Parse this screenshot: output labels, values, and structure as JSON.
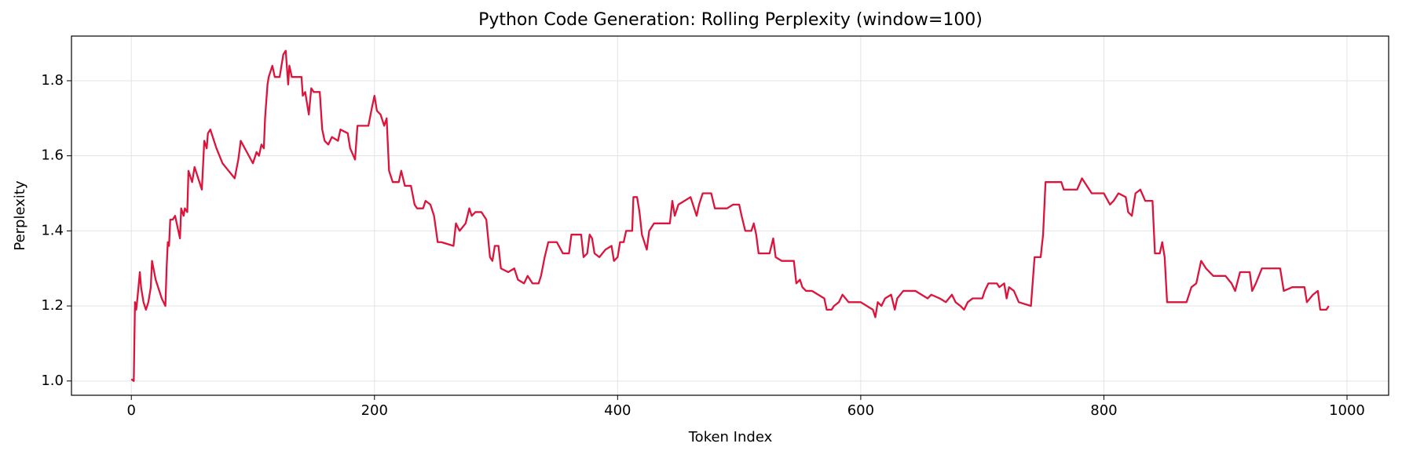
{
  "chart_data": {
    "type": "line",
    "title": "Python Code Generation: Rolling Perplexity (window=100)",
    "xlabel": "Token Index",
    "ylabel": "Perplexity",
    "color": "#dc143c",
    "grid": true,
    "xlim": [
      -49.25,
      1034.25
    ],
    "ylim": [
      0.962,
      1.919
    ],
    "xticks": [
      0,
      200,
      400,
      600,
      800,
      1000
    ],
    "yticks": [
      {
        "value": 1,
        "label": "1.0"
      },
      1.2,
      1.4,
      1.6,
      1.8
    ],
    "x": [
      0,
      2,
      3,
      4,
      5,
      7,
      8,
      10,
      12,
      14,
      16,
      17,
      20,
      25,
      28,
      29,
      30,
      31,
      32,
      34,
      36,
      38,
      40,
      41,
      43,
      44,
      46,
      47,
      50,
      52,
      55,
      58,
      60,
      62,
      63,
      65,
      70,
      75,
      80,
      85,
      88,
      90,
      95,
      100,
      103,
      105,
      107,
      109,
      110,
      112,
      113,
      116,
      118,
      122,
      125,
      127,
      129,
      130,
      132,
      140,
      141,
      143,
      146,
      148,
      150,
      155,
      157,
      159,
      162,
      165,
      170,
      172,
      178,
      180,
      184,
      186,
      190,
      195,
      198,
      200,
      202,
      205,
      208,
      210,
      212,
      215,
      220,
      222,
      225,
      230,
      233,
      235,
      240,
      242,
      246,
      249,
      252,
      255,
      265,
      267,
      270,
      275,
      278,
      280,
      283,
      288,
      292,
      295,
      297,
      299,
      302,
      304,
      310,
      315,
      318,
      323,
      326,
      330,
      335,
      337,
      340,
      343,
      350,
      355,
      360,
      362,
      370,
      372,
      375,
      377,
      379,
      381,
      385,
      390,
      395,
      397,
      400,
      402,
      405,
      407,
      412,
      413,
      416,
      418,
      420,
      424,
      426,
      430,
      443,
      445,
      447,
      450,
      455,
      460,
      463,
      465,
      467,
      470,
      477,
      480,
      490,
      495,
      500,
      502,
      505,
      510,
      512,
      514,
      516,
      525,
      528,
      530,
      535,
      545,
      547,
      550,
      552,
      555,
      560,
      565,
      570,
      572,
      576,
      578,
      582,
      585,
      590,
      600,
      605,
      610,
      612,
      614,
      617,
      620,
      625,
      628,
      630,
      635,
      645,
      650,
      655,
      658,
      665,
      670,
      675,
      678,
      682,
      685,
      688,
      692,
      700,
      702,
      705,
      712,
      714,
      718,
      720,
      722,
      726,
      730,
      740,
      743,
      748,
      750,
      752,
      765,
      767,
      778,
      782,
      786,
      790,
      800,
      805,
      808,
      812,
      818,
      820,
      823,
      826,
      830,
      834,
      840,
      842,
      846,
      848,
      850,
      852,
      856,
      868,
      872,
      876,
      880,
      884,
      890,
      900,
      905,
      908,
      912,
      920,
      922,
      925,
      930,
      945,
      948,
      955,
      965,
      967,
      972,
      976,
      978,
      983,
      985
    ],
    "values": [
      1.005,
      1.0,
      1.21,
      1.19,
      1.22,
      1.29,
      1.25,
      1.21,
      1.19,
      1.21,
      1.25,
      1.32,
      1.27,
      1.22,
      1.2,
      1.3,
      1.37,
      1.36,
      1.43,
      1.43,
      1.44,
      1.41,
      1.38,
      1.46,
      1.44,
      1.46,
      1.45,
      1.56,
      1.53,
      1.57,
      1.54,
      1.51,
      1.64,
      1.62,
      1.66,
      1.67,
      1.62,
      1.58,
      1.56,
      1.54,
      1.59,
      1.64,
      1.61,
      1.58,
      1.61,
      1.6,
      1.63,
      1.62,
      1.7,
      1.79,
      1.81,
      1.84,
      1.81,
      1.81,
      1.87,
      1.88,
      1.79,
      1.84,
      1.81,
      1.81,
      1.76,
      1.77,
      1.71,
      1.78,
      1.77,
      1.77,
      1.67,
      1.64,
      1.63,
      1.65,
      1.64,
      1.67,
      1.66,
      1.62,
      1.59,
      1.68,
      1.68,
      1.68,
      1.73,
      1.76,
      1.72,
      1.71,
      1.68,
      1.7,
      1.56,
      1.53,
      1.53,
      1.56,
      1.52,
      1.52,
      1.47,
      1.46,
      1.46,
      1.48,
      1.47,
      1.44,
      1.37,
      1.37,
      1.36,
      1.42,
      1.4,
      1.42,
      1.46,
      1.44,
      1.45,
      1.45,
      1.43,
      1.33,
      1.32,
      1.36,
      1.36,
      1.3,
      1.29,
      1.3,
      1.27,
      1.26,
      1.28,
      1.26,
      1.26,
      1.28,
      1.33,
      1.37,
      1.37,
      1.34,
      1.34,
      1.39,
      1.39,
      1.33,
      1.34,
      1.39,
      1.38,
      1.34,
      1.33,
      1.35,
      1.36,
      1.32,
      1.33,
      1.37,
      1.37,
      1.4,
      1.4,
      1.49,
      1.49,
      1.45,
      1.39,
      1.35,
      1.4,
      1.42,
      1.42,
      1.48,
      1.44,
      1.47,
      1.48,
      1.49,
      1.46,
      1.44,
      1.47,
      1.5,
      1.5,
      1.46,
      1.46,
      1.47,
      1.47,
      1.44,
      1.4,
      1.4,
      1.42,
      1.39,
      1.34,
      1.34,
      1.38,
      1.33,
      1.32,
      1.32,
      1.26,
      1.27,
      1.25,
      1.24,
      1.24,
      1.23,
      1.22,
      1.19,
      1.19,
      1.2,
      1.21,
      1.23,
      1.21,
      1.21,
      1.2,
      1.19,
      1.17,
      1.21,
      1.2,
      1.22,
      1.23,
      1.19,
      1.22,
      1.24,
      1.24,
      1.23,
      1.22,
      1.23,
      1.22,
      1.21,
      1.23,
      1.21,
      1.2,
      1.19,
      1.21,
      1.22,
      1.22,
      1.24,
      1.26,
      1.26,
      1.25,
      1.26,
      1.22,
      1.25,
      1.24,
      1.21,
      1.2,
      1.33,
      1.33,
      1.39,
      1.53,
      1.53,
      1.51,
      1.51,
      1.54,
      1.52,
      1.5,
      1.5,
      1.47,
      1.48,
      1.5,
      1.49,
      1.45,
      1.44,
      1.5,
      1.51,
      1.48,
      1.48,
      1.34,
      1.34,
      1.37,
      1.33,
      1.21,
      1.21,
      1.21,
      1.25,
      1.26,
      1.32,
      1.3,
      1.28,
      1.28,
      1.26,
      1.24,
      1.29,
      1.29,
      1.24,
      1.26,
      1.3,
      1.3,
      1.24,
      1.25,
      1.25,
      1.21,
      1.23,
      1.24,
      1.19,
      1.19,
      1.2
    ]
  }
}
